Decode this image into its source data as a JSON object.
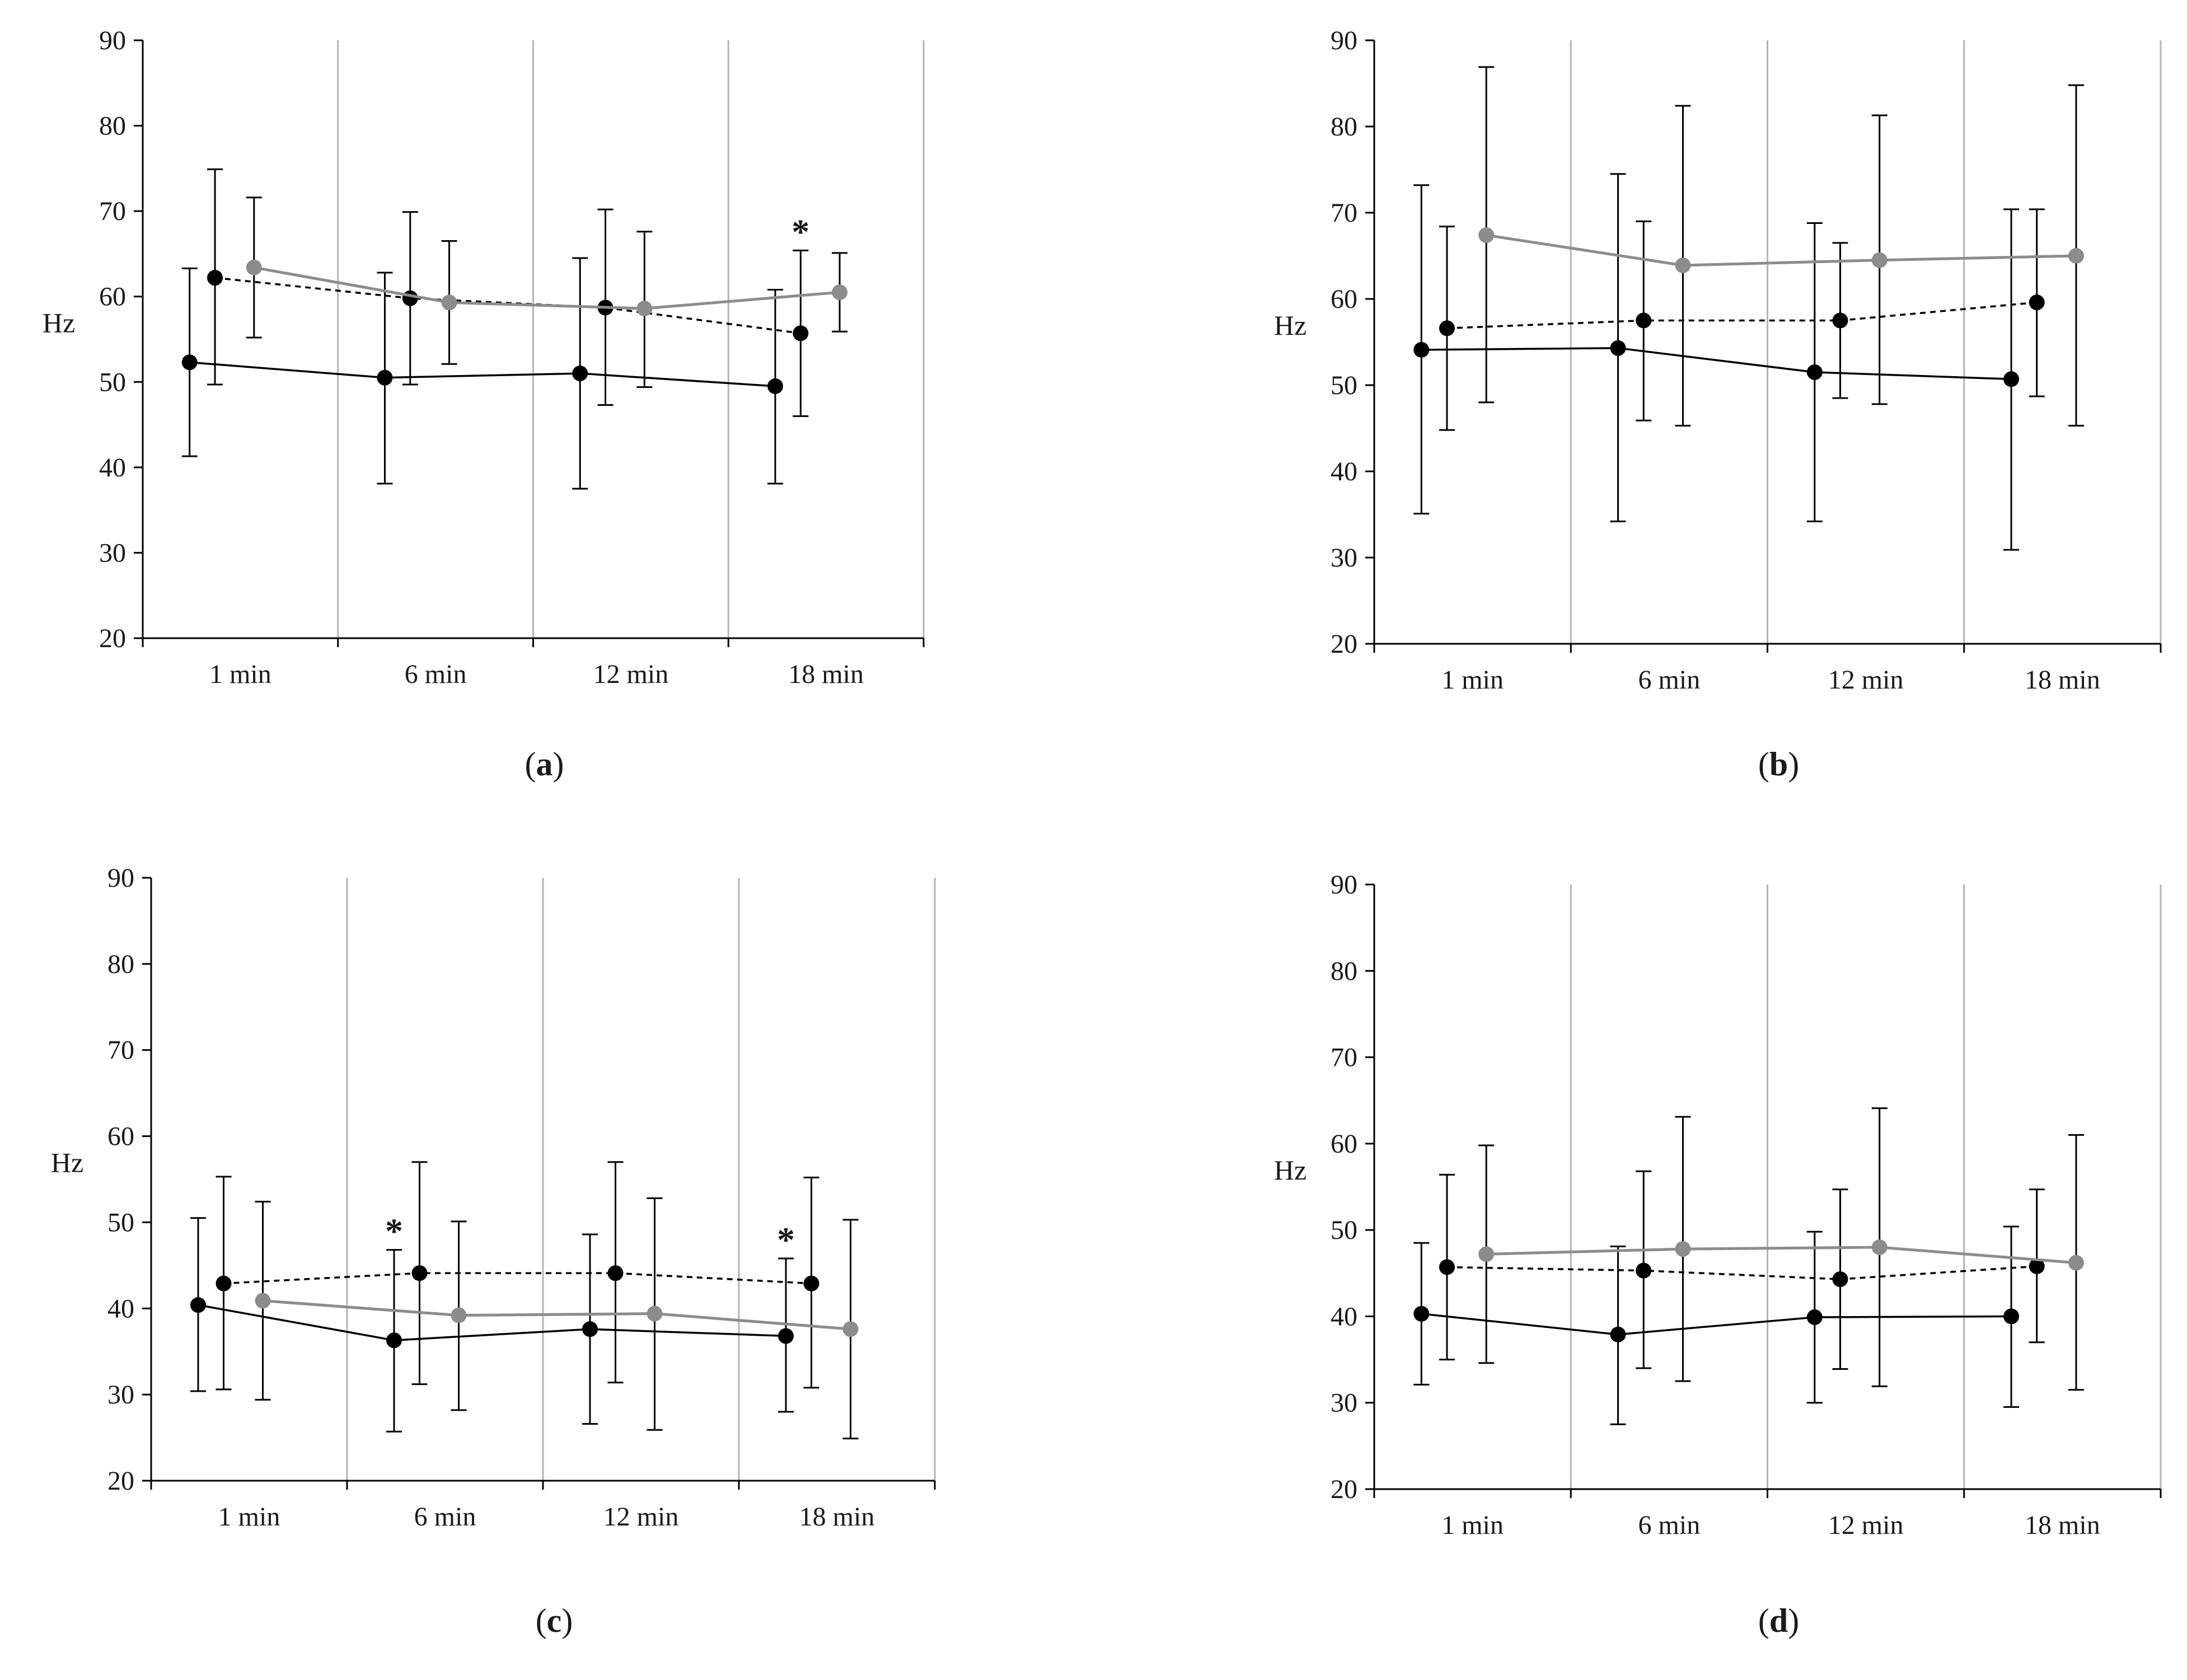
{
  "colors": {
    "black_series": "#000000",
    "gray_series": "#8c8c8c",
    "grid": "#b4b4b4",
    "axis": "#000000"
  },
  "chart_data": [
    {
      "id": "a",
      "type": "line",
      "label": "a",
      "ylabel": "Hz",
      "xlabel": "",
      "ylim": [
        20,
        90
      ],
      "yticks": [
        "20",
        "30",
        "40",
        "50",
        "60",
        "70",
        "80",
        "90"
      ],
      "categories": [
        "1 min",
        "6 min",
        "12 min",
        "18 min"
      ],
      "series": [
        {
          "name": "black solid",
          "style": "solid",
          "color": "black",
          "offset": 0,
          "values": [
            52.3,
            50.5,
            51.0,
            49.5
          ],
          "err_low": [
            41.3,
            38.1,
            37.5,
            38.1
          ],
          "err_high": [
            63.3,
            62.8,
            64.5,
            60.8
          ]
        },
        {
          "name": "black dashed",
          "style": "dashed",
          "color": "black",
          "offset": 1,
          "values": [
            62.2,
            59.8,
            58.7,
            55.7
          ],
          "err_low": [
            49.7,
            49.7,
            47.3,
            46.0
          ],
          "err_high": [
            74.9,
            69.9,
            70.2,
            65.4
          ]
        },
        {
          "name": "gray solid",
          "style": "solid",
          "color": "gray",
          "offset": 2,
          "values": [
            63.4,
            59.3,
            58.6,
            60.5
          ],
          "err_low": [
            55.2,
            52.1,
            49.4,
            55.9
          ],
          "err_high": [
            71.6,
            66.5,
            67.6,
            65.1
          ]
        }
      ],
      "annotations": [
        {
          "text": "*",
          "category": 3,
          "series": 1
        }
      ]
    },
    {
      "id": "b",
      "type": "line",
      "label": "b",
      "ylabel": "Hz",
      "xlabel": "",
      "ylim": [
        20,
        90
      ],
      "yticks": [
        "20",
        "30",
        "40",
        "50",
        "60",
        "70",
        "80",
        "90"
      ],
      "categories": [
        "1 min",
        "6 min",
        "12 min",
        "18 min"
      ],
      "series": [
        {
          "name": "black solid",
          "style": "solid",
          "color": "black",
          "offset": 0,
          "values": [
            54.1,
            54.3,
            51.5,
            50.7
          ],
          "err_low": [
            35.1,
            34.2,
            34.2,
            30.9
          ],
          "err_high": [
            73.2,
            74.5,
            68.8,
            70.4
          ]
        },
        {
          "name": "black dashed",
          "style": "dashed",
          "color": "black",
          "offset": 1,
          "values": [
            56.6,
            57.5,
            57.5,
            59.6
          ],
          "err_low": [
            44.8,
            45.9,
            48.5,
            48.7
          ],
          "err_high": [
            68.4,
            69.0,
            66.5,
            70.4
          ]
        },
        {
          "name": "gray solid",
          "style": "solid",
          "color": "gray",
          "offset": 2,
          "values": [
            67.4,
            63.9,
            64.5,
            65.0
          ],
          "err_low": [
            48.0,
            45.3,
            47.8,
            45.3
          ],
          "err_high": [
            86.9,
            82.4,
            81.3,
            84.8
          ]
        }
      ],
      "annotations": []
    },
    {
      "id": "c",
      "type": "line",
      "label": "c",
      "ylabel": "Hz",
      "xlabel": "",
      "ylim": [
        20,
        90
      ],
      "yticks": [
        "20",
        "30",
        "40",
        "50",
        "60",
        "70",
        "80",
        "90"
      ],
      "categories": [
        "1 min",
        "6 min",
        "12 min",
        "18 min"
      ],
      "series": [
        {
          "name": "black solid",
          "style": "solid",
          "color": "black",
          "offset": 0,
          "values": [
            40.4,
            36.3,
            37.6,
            36.8
          ],
          "err_low": [
            30.4,
            25.7,
            26.6,
            28.0
          ],
          "err_high": [
            50.5,
            46.8,
            48.6,
            45.8
          ]
        },
        {
          "name": "black dashed",
          "style": "dashed",
          "color": "black",
          "offset": 1,
          "values": [
            42.9,
            44.1,
            44.1,
            42.9
          ],
          "err_low": [
            30.6,
            31.2,
            31.4,
            30.8
          ],
          "err_high": [
            55.3,
            57.0,
            57.0,
            55.2
          ]
        },
        {
          "name": "gray solid",
          "style": "solid",
          "color": "gray",
          "offset": 2,
          "values": [
            40.9,
            39.2,
            39.4,
            37.6
          ],
          "err_low": [
            29.4,
            28.2,
            25.9,
            24.9
          ],
          "err_high": [
            52.4,
            50.1,
            52.8,
            50.3
          ]
        }
      ],
      "annotations": [
        {
          "text": "*",
          "category": 1,
          "series": 0
        },
        {
          "text": "*",
          "category": 3,
          "series": 0
        }
      ]
    },
    {
      "id": "d",
      "type": "line",
      "label": "d",
      "ylabel": "Hz",
      "xlabel": "",
      "ylim": [
        20,
        90
      ],
      "yticks": [
        "20",
        "30",
        "40",
        "50",
        "60",
        "70",
        "80",
        "90"
      ],
      "categories": [
        "1 min",
        "6 min",
        "12 min",
        "18 min"
      ],
      "series": [
        {
          "name": "black solid",
          "style": "solid",
          "color": "black",
          "offset": 0,
          "values": [
            40.3,
            37.9,
            39.9,
            40.0
          ],
          "err_low": [
            32.1,
            27.5,
            30.0,
            29.5
          ],
          "err_high": [
            48.5,
            48.1,
            49.8,
            50.4
          ]
        },
        {
          "name": "black dashed",
          "style": "dashed",
          "color": "black",
          "offset": 1,
          "values": [
            45.7,
            45.3,
            44.3,
            45.8
          ],
          "err_low": [
            35.0,
            34.0,
            33.9,
            37.0
          ],
          "err_high": [
            56.4,
            56.8,
            54.7,
            54.7
          ]
        },
        {
          "name": "gray solid",
          "style": "solid",
          "color": "gray",
          "offset": 2,
          "values": [
            47.2,
            47.8,
            48.0,
            46.2
          ],
          "err_low": [
            34.6,
            32.5,
            31.9,
            31.5
          ],
          "err_high": [
            59.8,
            63.1,
            64.1,
            61.0
          ]
        }
      ],
      "annotations": []
    }
  ]
}
